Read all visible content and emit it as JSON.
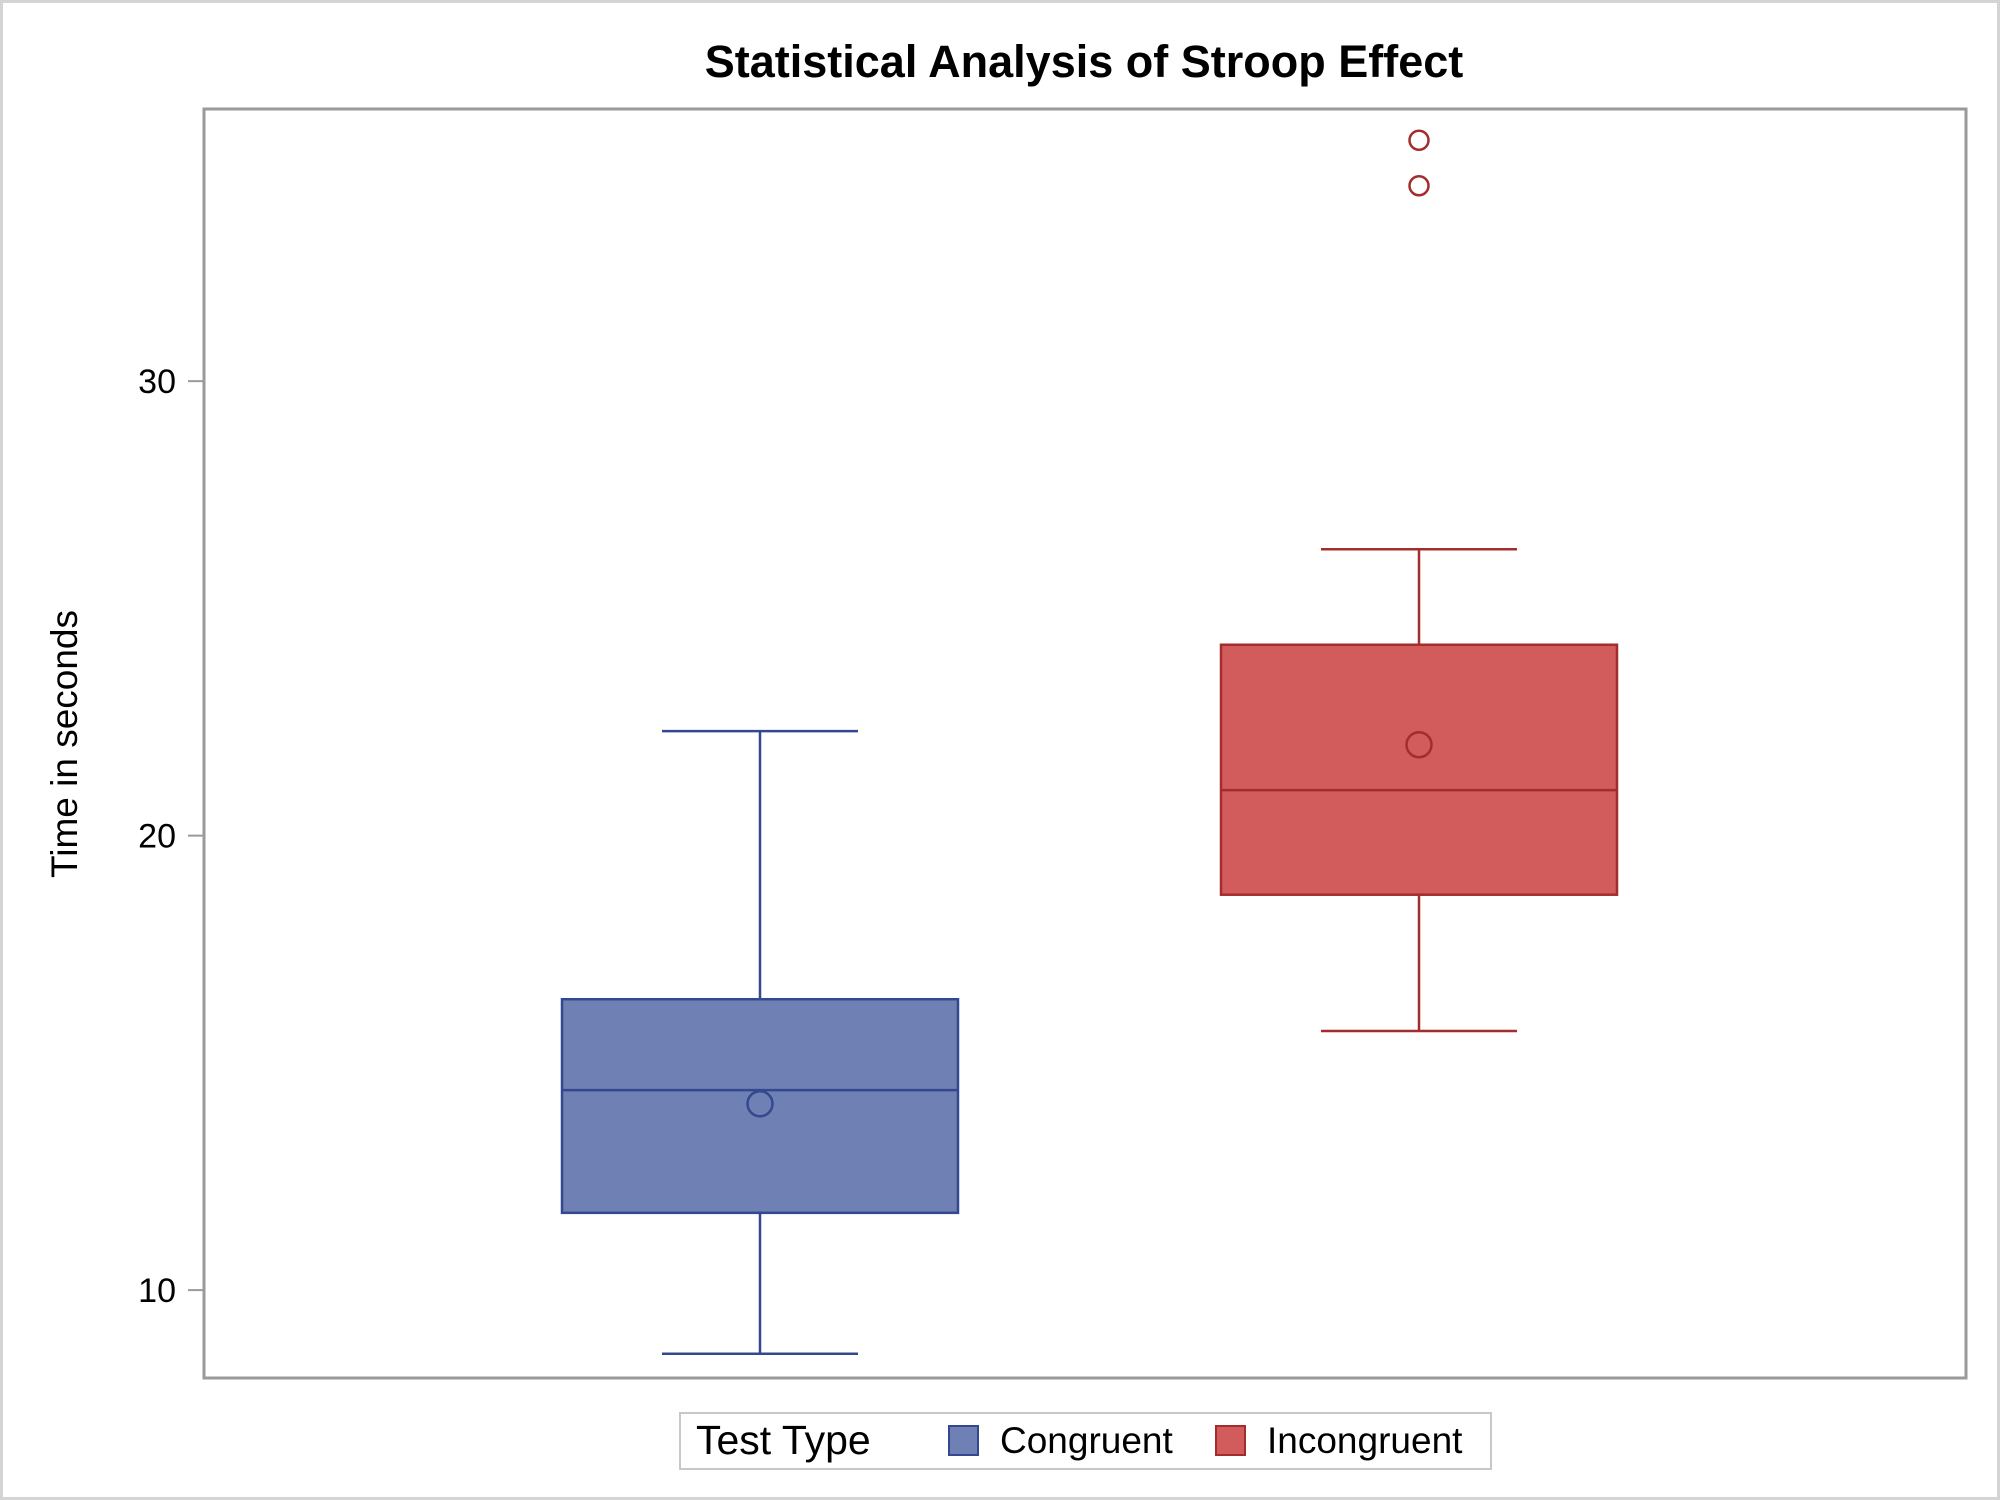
{
  "chart_data": {
    "type": "box",
    "title": "Statistical Analysis of Stroop Effect",
    "xlabel": "",
    "ylabel": "Time in seconds",
    "ylim": [
      8,
      35.9
    ],
    "yticks": [
      10,
      20,
      30
    ],
    "grid": false,
    "legend": {
      "title": "Test Type",
      "placement": "bottom",
      "entries": [
        "Congruent",
        "Incongruent"
      ]
    },
    "series": [
      {
        "name": "Congruent",
        "color": "#6f80b5",
        "stroke": "#34488f",
        "whisker_low": 8.6,
        "q1": 11.7,
        "median": 14.4,
        "q3": 16.4,
        "whisker_high": 22.3,
        "mean": 14.1,
        "outliers": []
      },
      {
        "name": "Incongruent",
        "color": "#d25b5b",
        "stroke": "#a32d2d",
        "whisker_low": 15.7,
        "q1": 18.7,
        "median": 21.0,
        "q3": 24.2,
        "whisker_high": 26.3,
        "mean": 22.0,
        "outliers": [
          34.3,
          35.3
        ]
      }
    ]
  }
}
